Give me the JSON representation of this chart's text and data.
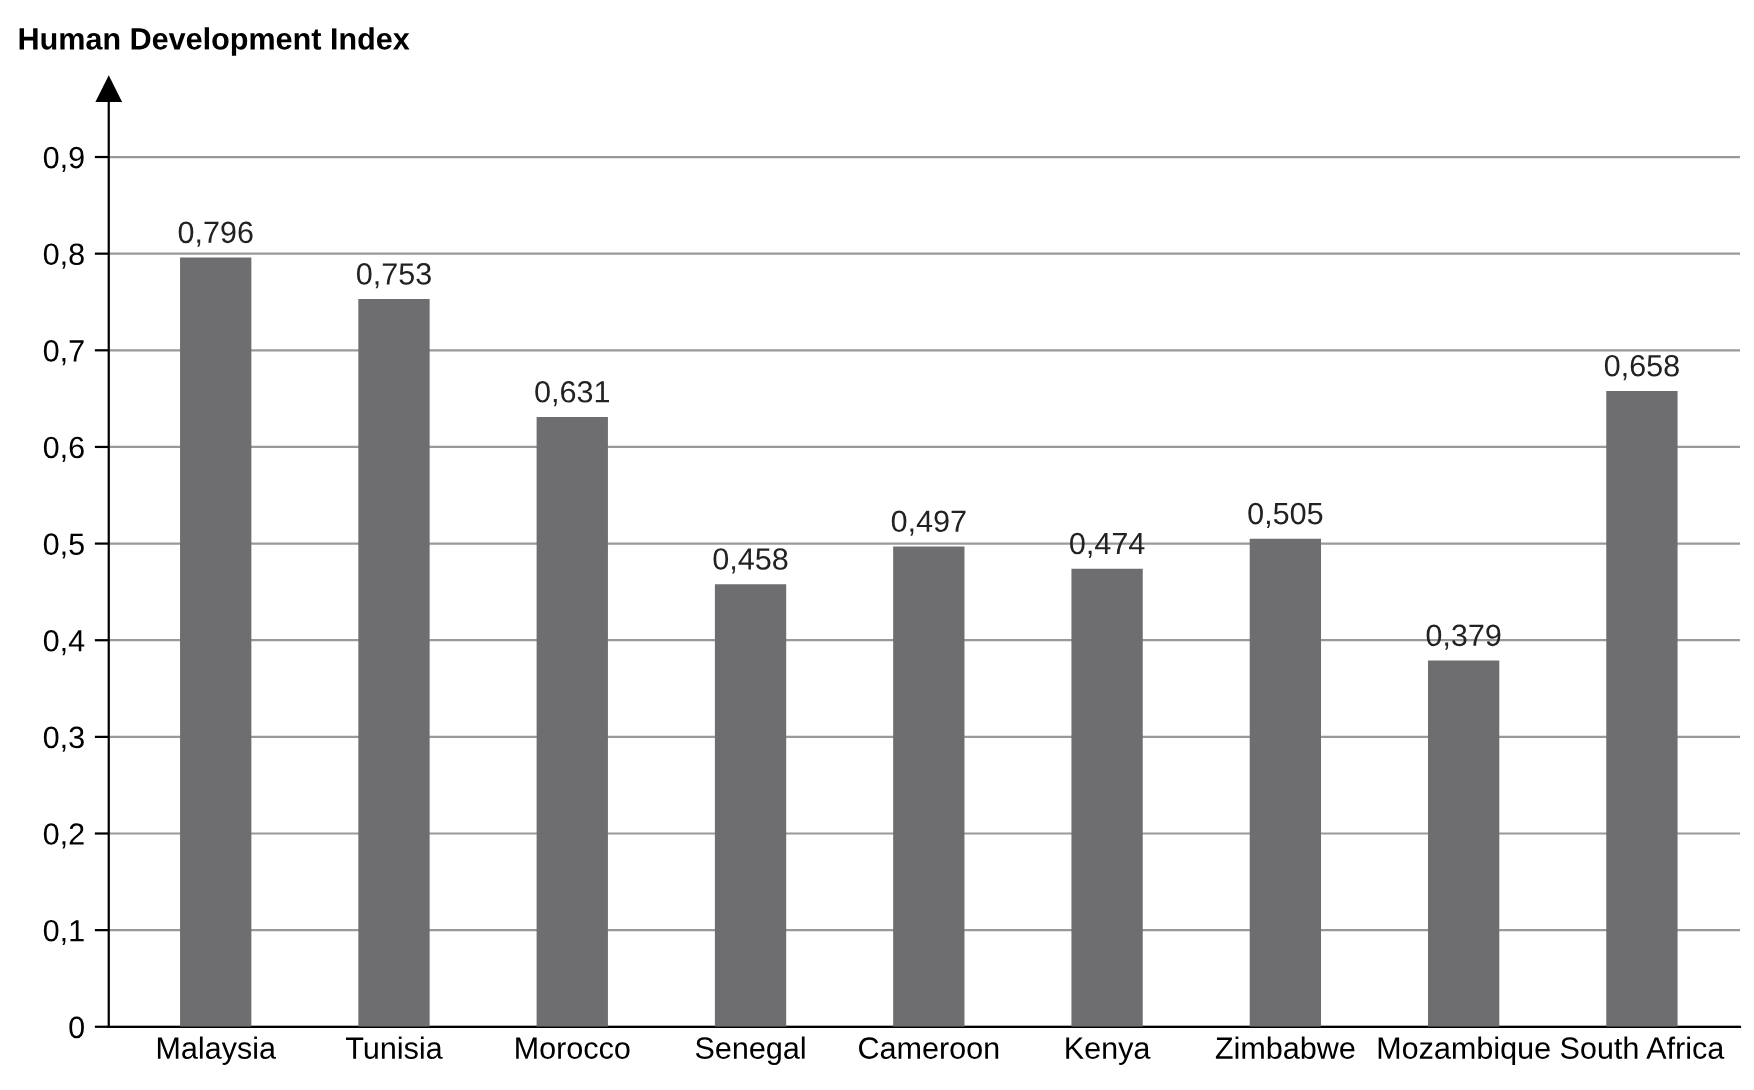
{
  "chart_data": {
    "type": "bar",
    "title": "Human Development Index",
    "categories": [
      "Malaysia",
      "Tunisia",
      "Morocco",
      "Senegal",
      "Cameroon",
      "Kenya",
      "Zimbabwe",
      "Mozambique",
      "South Africa"
    ],
    "values": [
      0.796,
      0.753,
      0.631,
      0.458,
      0.497,
      0.474,
      0.505,
      0.379,
      0.658
    ],
    "value_labels": [
      "0,796",
      "0,753",
      "0,631",
      "0,458",
      "0,497",
      "0,474",
      "0,505",
      "0,379",
      "0,658"
    ],
    "color": "#6e6e70",
    "ylim": [
      0,
      0.97
    ],
    "yticks": [
      0,
      {
        "value": 0.1,
        "label": "0,1"
      },
      {
        "value": 0.2,
        "label": "0,2"
      },
      {
        "value": 0.3,
        "label": "0,3"
      },
      {
        "value": 0.4,
        "label": "0,4"
      },
      {
        "value": 0.5,
        "label": "0,5"
      },
      {
        "value": 0.6,
        "label": "0,6"
      },
      {
        "value": 0.7,
        "label": "0,7"
      },
      {
        "value": 0.8,
        "label": "0,8"
      },
      {
        "value": 0.9,
        "label": "0,9"
      }
    ],
    "grid": "y",
    "legend": false
  }
}
